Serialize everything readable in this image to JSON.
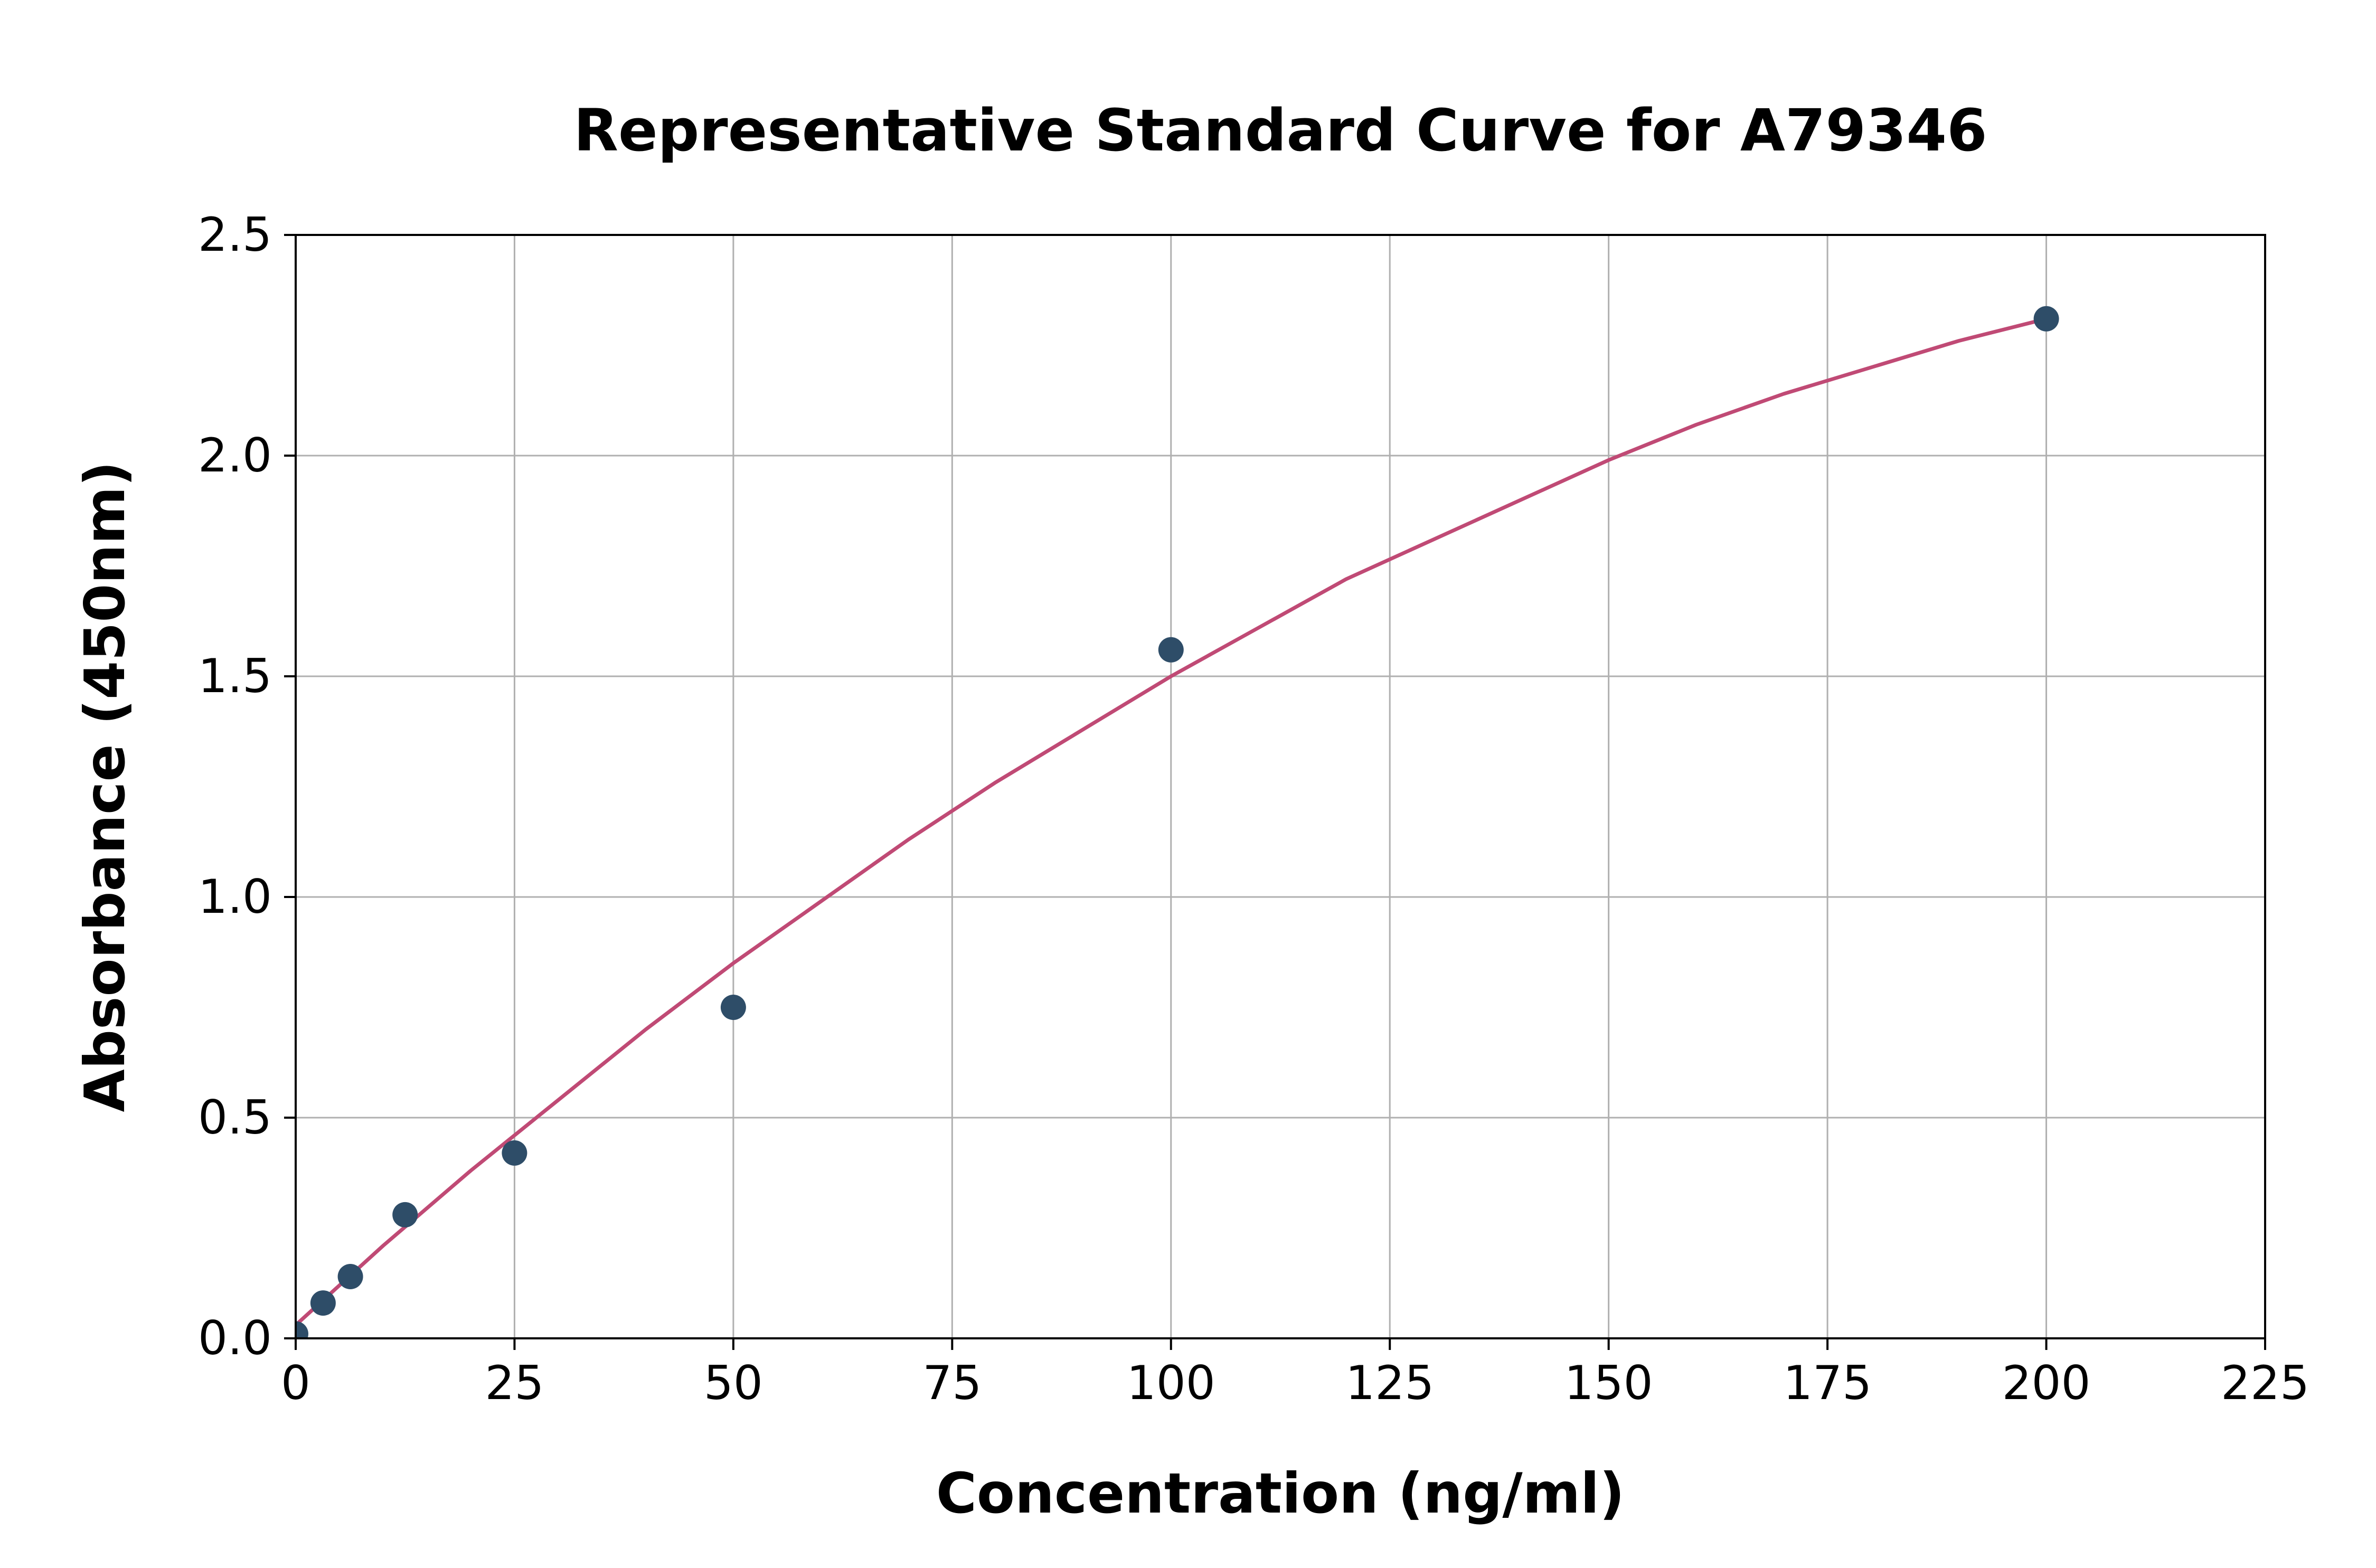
{
  "page": {
    "background": "#ffffff"
  },
  "chart_data": {
    "type": "scatter",
    "title": "Representative Standard Curve for A79346",
    "xlabel": "Concentration (ng/ml)",
    "ylabel": "Absorbance (450nm)",
    "xlim": [
      0,
      225
    ],
    "ylim": [
      0,
      2.5
    ],
    "x_ticks": [
      0,
      25,
      50,
      75,
      100,
      125,
      150,
      175,
      200,
      225
    ],
    "y_ticks": [
      "0.0",
      "0.5",
      "1.0",
      "1.5",
      "2.0",
      "2.5"
    ],
    "grid": true,
    "legend": "none",
    "colors": {
      "points": "#2e4d68",
      "curve": "#c04a75",
      "grid": "#b0b0b0",
      "axis": "#000000"
    },
    "series": [
      {
        "name": "standard-points",
        "type": "scatter",
        "x": [
          0,
          3.13,
          6.25,
          12.5,
          25,
          50,
          100,
          200
        ],
        "y": [
          0.01,
          0.08,
          0.14,
          0.28,
          0.42,
          0.75,
          1.56,
          2.31
        ]
      },
      {
        "name": "fitted-curve",
        "type": "line",
        "x": [
          0,
          10,
          20,
          30,
          40,
          50,
          60,
          70,
          80,
          90,
          100,
          110,
          120,
          130,
          140,
          150,
          160,
          170,
          180,
          190,
          200
        ],
        "y": [
          0.03,
          0.21,
          0.38,
          0.54,
          0.7,
          0.85,
          0.99,
          1.13,
          1.26,
          1.38,
          1.5,
          1.61,
          1.72,
          1.81,
          1.9,
          1.99,
          2.07,
          2.14,
          2.2,
          2.26,
          2.31
        ]
      }
    ]
  }
}
